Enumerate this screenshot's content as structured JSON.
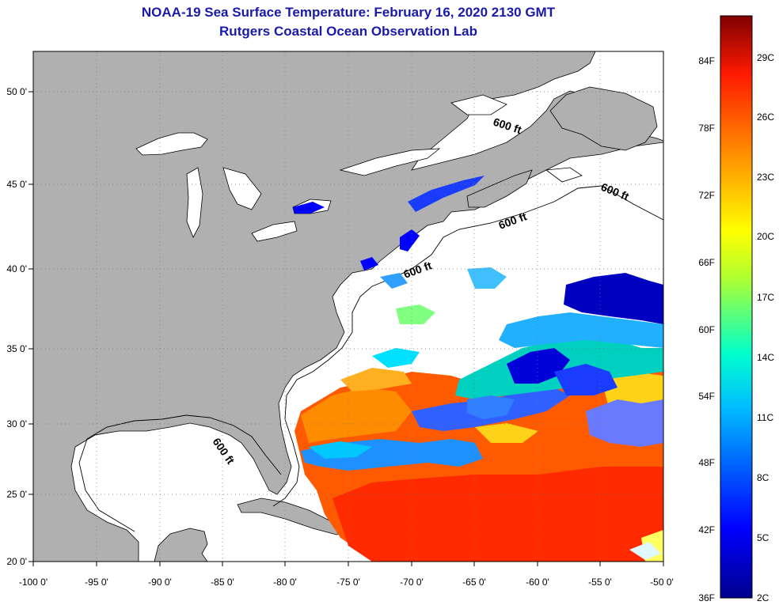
{
  "title": "NOAA-19 Sea Surface Temperature:  February 16, 2020 2130 GMT",
  "subtitle": "Rutgers Coastal Ocean Observation Lab",
  "contour_label": "600 ft",
  "lon_ticks": [
    "-100 0'",
    "-95 0'",
    "-90 0'",
    "-85 0'",
    "-80 0'",
    "-75 0'",
    "-70 0'",
    "-65 0'",
    "-60 0'",
    "-55 0'",
    "-50 0'"
  ],
  "lat_ticks": [
    "50 0'",
    "45 0'",
    "40 0'",
    "35 0'",
    "30 0'",
    "25 0'",
    "20 0'"
  ],
  "colorbar": {
    "fahrenheit": [
      "84F",
      "78F",
      "72F",
      "66F",
      "60F",
      "54F",
      "48F",
      "42F",
      "36F"
    ],
    "celsius": [
      "29C",
      "26C",
      "23C",
      "20C",
      "17C",
      "14C",
      "11C",
      "8C",
      "5C",
      "2C"
    ]
  },
  "colors": {
    "land": "#b0b0b0",
    "water": "#ffffff",
    "title": "#1a1aa8"
  }
}
